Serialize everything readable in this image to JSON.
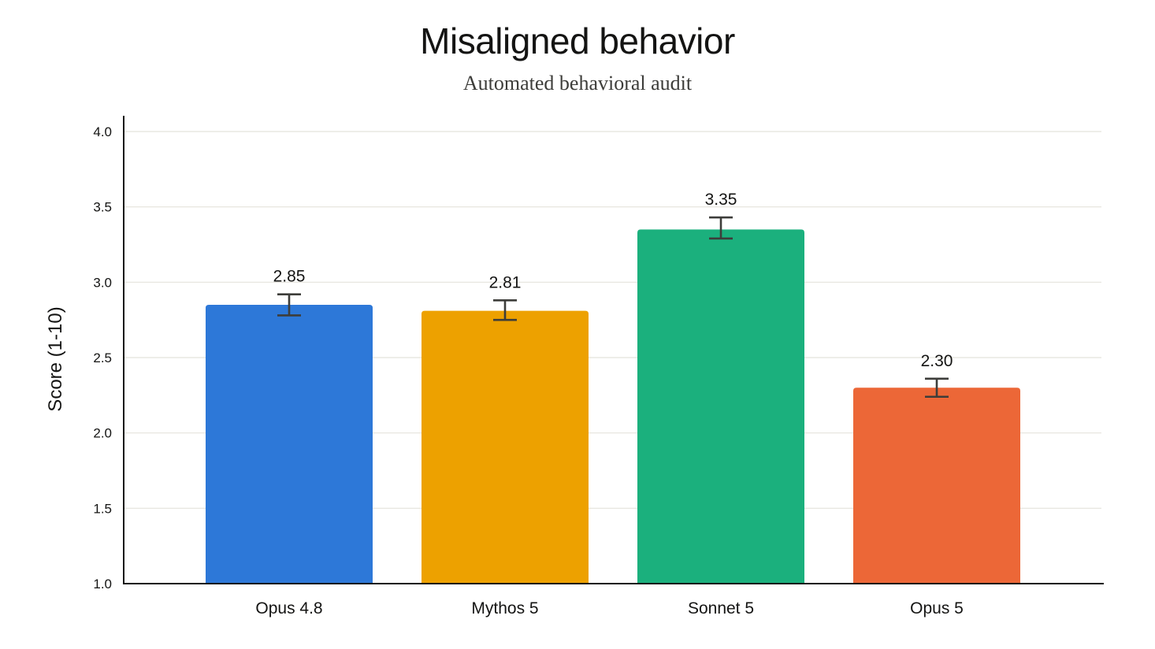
{
  "chart_data": {
    "type": "bar",
    "title": "Misaligned behavior",
    "subtitle": "Automated behavioral audit",
    "xlabel": "",
    "ylabel": "Score (1-10)",
    "ylim": [
      1.0,
      4.0
    ],
    "yticks": [
      "1.0",
      "1.5",
      "2.0",
      "2.5",
      "3.0",
      "3.5",
      "4.0"
    ],
    "grid": true,
    "categories": [
      "Opus 4.8",
      "Mythos 5",
      "Sonnet 5",
      "Opus 5"
    ],
    "values": [
      2.85,
      2.81,
      3.35,
      2.3
    ],
    "value_labels": [
      "2.85",
      "2.81",
      "3.35",
      "2.30"
    ],
    "error_bars": [
      {
        "low": 2.78,
        "high": 2.92
      },
      {
        "low": 2.75,
        "high": 2.88
      },
      {
        "low": 3.29,
        "high": 3.43
      },
      {
        "low": 2.24,
        "high": 2.36
      }
    ],
    "colors": [
      "#2D78D8",
      "#EDA100",
      "#1BB07D",
      "#EC6737"
    ]
  }
}
